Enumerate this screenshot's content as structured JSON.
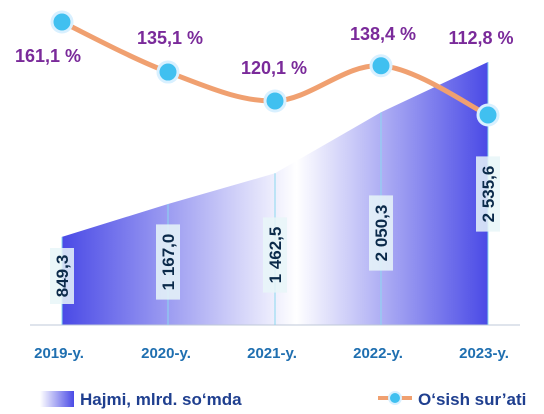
{
  "colors": {
    "area_fill": "#4a4ae6",
    "area_fill_light": "#ffffff",
    "line": "#f0a070",
    "marker_fill": "#40c0f0",
    "marker_stroke": "#d8f0ff",
    "pct_label": "#7a2a9a",
    "category_label": "#1f6fb0",
    "legend_text": "#1f3f8f",
    "value_label_bg": "#e8f6f8"
  },
  "chart_data": {
    "type": "area+line",
    "categories": [
      "2019-y.",
      "2020-y.",
      "2021-y.",
      "2022-y.",
      "2023-y."
    ],
    "series": [
      {
        "name": "Hajmi, mlrd. so‘mda",
        "kind": "area",
        "values": [
          849.3,
          1167.0,
          1462.5,
          2050.3,
          2535.6
        ],
        "labels": [
          "849,3",
          "1 167,0",
          "1 462,5",
          "2 050,3",
          "2 535,6"
        ]
      },
      {
        "name": "O‘sish sur’ati",
        "kind": "line",
        "values": [
          161.1,
          135.1,
          120.1,
          138.4,
          112.8
        ],
        "labels": [
          "161,1 %",
          "135,1 %",
          "120,1 %",
          "138,4 %",
          "112,8 %"
        ]
      }
    ],
    "legend_position": "bottom",
    "grid": false
  },
  "legend": {
    "area_label": "Hajmi, mlrd. so‘mda",
    "line_label": "O‘sish sur’ati"
  }
}
